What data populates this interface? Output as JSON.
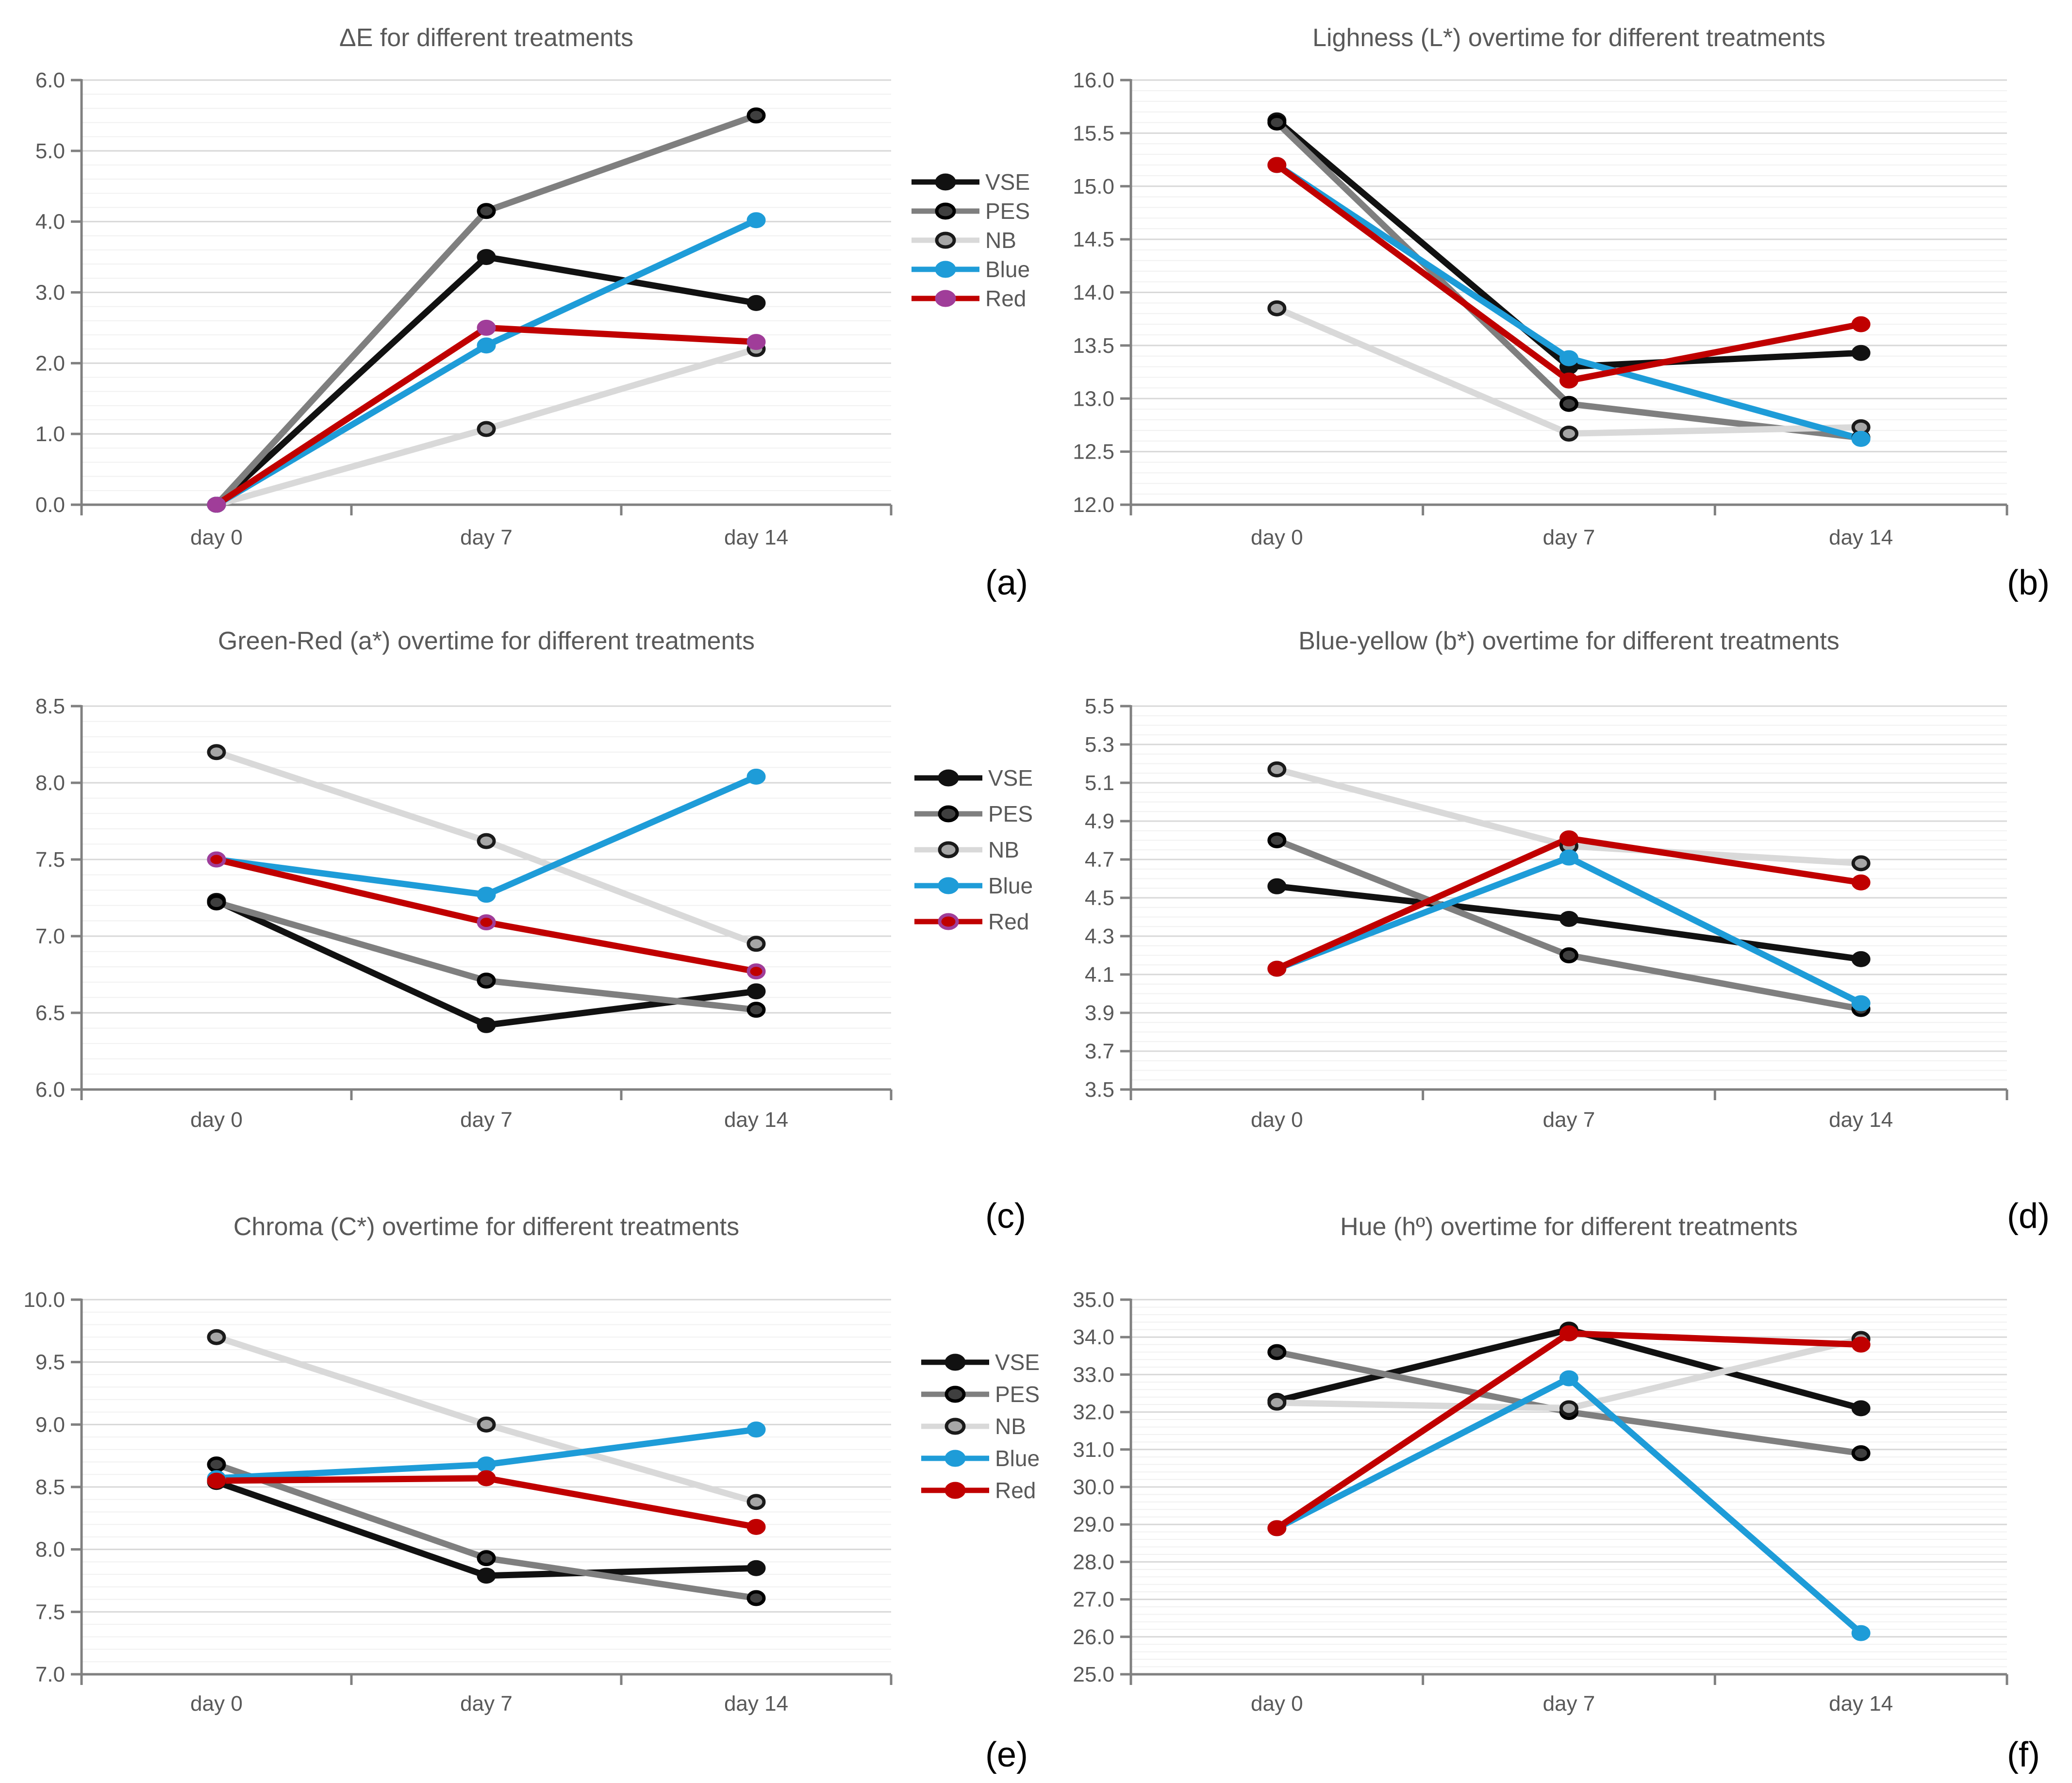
{
  "figure": {
    "background": "#FFFFFF",
    "text_color": "#595959",
    "axis_color": "#808080",
    "major_grid_color": "#D8D8D8",
    "minor_grid_color": "#F1F1F1",
    "letters": {
      "a": "(a)",
      "b": "(b)",
      "c": "(c)",
      "d": "(d)",
      "e": "(e)",
      "f": "(f)"
    }
  },
  "legend": {
    "labels": [
      "VSE",
      "PES",
      "NB",
      "Blue",
      "Red"
    ],
    "instances": [
      {
        "row": 1,
        "red_marker": {
          "fill": "#A03D99",
          "stroke": "#A03D99"
        }
      },
      {
        "row": 2,
        "red_marker": {
          "fill": "#C00000",
          "stroke": "#A03D99"
        }
      },
      {
        "row": 3,
        "red_marker": {
          "fill": "#C00000",
          "stroke": "#C00000"
        }
      }
    ]
  },
  "series_styles": {
    "VSE": {
      "line": "#111111",
      "marker_fill": "#111111",
      "marker_stroke": "#111111"
    },
    "PES": {
      "line": "#7F7F7F",
      "marker_fill": "#3F3F3F",
      "marker_stroke": "#000000"
    },
    "NB": {
      "line": "#D9D9D9",
      "marker_fill": "#A6A6A6",
      "marker_stroke": "#1A1A1A"
    },
    "Blue": {
      "line": "#1E9CD8",
      "marker_fill": "#1E9CD8",
      "marker_stroke": "#1E9CD8"
    },
    "Red": {
      "line": "#C00000",
      "marker_fill": "#C00000",
      "marker_stroke": "#C00000"
    }
  },
  "chart_data": [
    {
      "id": "a",
      "letter": "(a)",
      "type": "line",
      "title": "ΔE  for different treatments",
      "categories": [
        "day 0",
        "day 7",
        "day 14"
      ],
      "ylim": [
        0.0,
        6.0
      ],
      "ytick_step": 1.0,
      "minor_step": 0.2,
      "yticks": [
        "0.0",
        "1.0",
        "2.0",
        "3.0",
        "4.0",
        "5.0",
        "6.0"
      ],
      "grid": true,
      "legend_position": "right-gutter",
      "series": [
        {
          "name": "VSE",
          "values": [
            0.0,
            3.5,
            2.85
          ]
        },
        {
          "name": "PES",
          "values": [
            0.0,
            4.15,
            5.5
          ]
        },
        {
          "name": "NB",
          "values": [
            0.0,
            1.07,
            2.2
          ]
        },
        {
          "name": "Blue",
          "values": [
            0.0,
            2.25,
            4.02
          ]
        },
        {
          "name": "Red",
          "values": [
            0.0,
            2.5,
            2.3
          ]
        }
      ],
      "red_marker": {
        "fill": "#A03D99",
        "stroke": "#A03D99"
      }
    },
    {
      "id": "b",
      "letter": "(b)",
      "type": "line",
      "title": "Lighness (L*) overtime for different treatments",
      "categories": [
        "day 0",
        "day 7",
        "day 14"
      ],
      "ylim": [
        12.0,
        16.0
      ],
      "ytick_step": 0.5,
      "minor_step": 0.1,
      "yticks": [
        "12.0",
        "12.5",
        "13.0",
        "13.5",
        "14.0",
        "14.5",
        "15.0",
        "15.5",
        "16.0"
      ],
      "grid": true,
      "series": [
        {
          "name": "VSE",
          "values": [
            15.62,
            13.3,
            13.43
          ]
        },
        {
          "name": "PES",
          "values": [
            15.6,
            12.95,
            12.63
          ]
        },
        {
          "name": "NB",
          "values": [
            13.85,
            12.67,
            12.73
          ]
        },
        {
          "name": "Blue",
          "values": [
            15.2,
            13.38,
            12.62
          ]
        },
        {
          "name": "Red",
          "values": [
            15.2,
            13.17,
            13.7
          ]
        }
      ],
      "red_marker": {
        "fill": "#C00000",
        "stroke": "#C00000"
      }
    },
    {
      "id": "c",
      "letter": "(c)",
      "type": "line",
      "title": "Green-Red (a*) overtime for different treatments",
      "categories": [
        "day 0",
        "day 7",
        "day 14"
      ],
      "ylim": [
        6.0,
        8.5
      ],
      "ytick_step": 0.5,
      "minor_step": 0.1,
      "yticks": [
        "6.0",
        "6.5",
        "7.0",
        "7.5",
        "8.0",
        "8.5"
      ],
      "grid": true,
      "series": [
        {
          "name": "VSE",
          "values": [
            7.23,
            6.42,
            6.64
          ]
        },
        {
          "name": "PES",
          "values": [
            7.22,
            6.71,
            6.52
          ]
        },
        {
          "name": "NB",
          "values": [
            8.2,
            7.62,
            6.95
          ]
        },
        {
          "name": "Blue",
          "values": [
            7.5,
            7.27,
            8.04
          ]
        },
        {
          "name": "Red",
          "values": [
            7.5,
            7.09,
            6.77
          ]
        }
      ],
      "red_marker": {
        "fill": "#C00000",
        "stroke": "#A03D99"
      }
    },
    {
      "id": "d",
      "letter": "(d)",
      "type": "line",
      "title": "Blue-yellow (b*) overtime for different treatments",
      "categories": [
        "day 0",
        "day 7",
        "day 14"
      ],
      "ylim": [
        3.5,
        5.5
      ],
      "ytick_step": 0.2,
      "minor_step": 0.05,
      "yticks": [
        "3.5",
        "3.7",
        "3.9",
        "4.1",
        "4.3",
        "4.5",
        "4.7",
        "4.9",
        "5.1",
        "5.3",
        "5.5"
      ],
      "grid": true,
      "series": [
        {
          "name": "VSE",
          "values": [
            4.56,
            4.39,
            4.18
          ]
        },
        {
          "name": "PES",
          "values": [
            4.8,
            4.2,
            3.92
          ]
        },
        {
          "name": "NB",
          "values": [
            5.17,
            4.77,
            4.68
          ]
        },
        {
          "name": "Blue",
          "values": [
            4.13,
            4.71,
            3.95
          ]
        },
        {
          "name": "Red",
          "values": [
            4.13,
            4.81,
            4.58
          ]
        }
      ],
      "red_marker": {
        "fill": "#C00000",
        "stroke": "#C00000"
      }
    },
    {
      "id": "e",
      "letter": "(e)",
      "type": "line",
      "title": "Chroma (C*) overtime for different treatments",
      "categories": [
        "day 0",
        "day 7",
        "day 14"
      ],
      "ylim": [
        7.0,
        10.0
      ],
      "ytick_step": 0.5,
      "minor_step": 0.1,
      "yticks": [
        "7.0",
        "7.5",
        "8.0",
        "8.5",
        "9.0",
        "9.5",
        "10.0"
      ],
      "grid": true,
      "series": [
        {
          "name": "VSE",
          "values": [
            8.54,
            7.79,
            7.85
          ]
        },
        {
          "name": "PES",
          "values": [
            8.68,
            7.93,
            7.61
          ]
        },
        {
          "name": "NB",
          "values": [
            9.7,
            9.0,
            8.38
          ]
        },
        {
          "name": "Blue",
          "values": [
            8.57,
            8.68,
            8.96
          ]
        },
        {
          "name": "Red",
          "values": [
            8.55,
            8.57,
            8.18
          ]
        }
      ],
      "red_marker": {
        "fill": "#C00000",
        "stroke": "#C00000"
      }
    },
    {
      "id": "f",
      "letter": "(f)",
      "type": "line",
      "title": "Hue (hº) overtime for different treatments",
      "categories": [
        "day 0",
        "day 7",
        "day 14"
      ],
      "ylim": [
        25.0,
        35.0
      ],
      "ytick_step": 1.0,
      "minor_step": 0.2,
      "yticks": [
        "25.0",
        "26.0",
        "27.0",
        "28.0",
        "29.0",
        "30.0",
        "31.0",
        "32.0",
        "33.0",
        "34.0",
        "35.0"
      ],
      "grid": true,
      "series": [
        {
          "name": "VSE",
          "values": [
            32.3,
            34.2,
            32.1
          ]
        },
        {
          "name": "PES",
          "values": [
            33.6,
            32.0,
            30.9
          ]
        },
        {
          "name": "NB",
          "values": [
            32.25,
            32.1,
            33.95
          ]
        },
        {
          "name": "Blue",
          "values": [
            28.9,
            32.9,
            26.1
          ]
        },
        {
          "name": "Red",
          "values": [
            28.9,
            34.1,
            33.8
          ]
        }
      ],
      "red_marker": {
        "fill": "#C00000",
        "stroke": "#C00000"
      }
    }
  ]
}
